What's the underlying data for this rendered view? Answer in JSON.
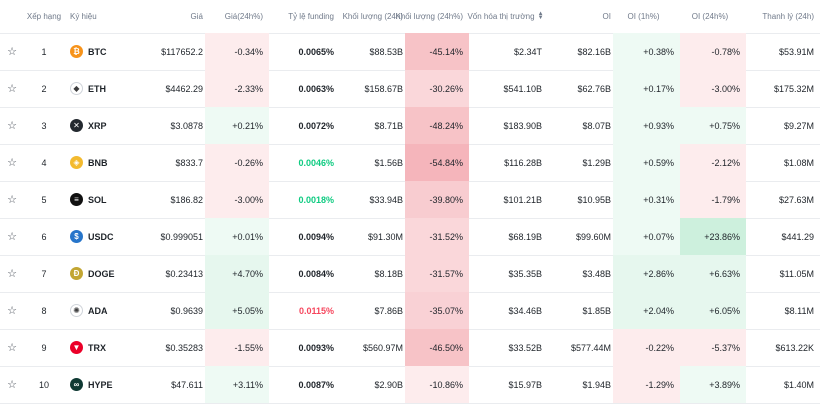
{
  "header": {
    "rank": "Xếp hạng",
    "symbol": "Ký hiệu",
    "price": "Giá",
    "price_change": "Giá(24h%)",
    "funding": "Tỷ lệ funding",
    "volume": "Khối lượng (24h)",
    "volume_change": "Khối lượng (24h%)",
    "market_cap_line1": "Vốn hóa thị",
    "market_cap_line2": "trường",
    "oi": "OI",
    "oi_1h": "OI (1h%)",
    "oi_24h": "OI (24h%)",
    "liquidation": "Thanh lý (24h)"
  },
  "colors": {
    "green_bg_light": "#eefaf4",
    "green_bg_strong": "#cdf0dd",
    "red_bg_light": "#fdeced",
    "red_bg_mid": "#fad7da",
    "red_bg_strong": "#f7c3c7",
    "green_text": "#0ecb81",
    "red_text": "#f6465d"
  },
  "rows": [
    {
      "rank": "1",
      "symbol": "BTC",
      "icon": "bitcoin-icon",
      "icon_color": "#f7931a",
      "glyph": "₿",
      "price": "$117652.2",
      "price_change": "-0.34%",
      "pc_bg": "#fdeced",
      "funding": "0.0065%",
      "funding_color": "",
      "volume": "$88.53B",
      "volume_change": "-45.14%",
      "vc_bg": "#f7c3c7",
      "market_cap": "$2.34T",
      "oi": "$82.16B",
      "oi_1h": "+0.38%",
      "oi1h_bg": "#eefaf4",
      "oi_24h": "-0.78%",
      "oi24_bg": "#fdeced",
      "liquidation": "$53.91M"
    },
    {
      "rank": "2",
      "symbol": "ETH",
      "icon": "ethereum-icon",
      "icon_color": "#ffffff",
      "glyph": "◆",
      "price": "$4462.29",
      "price_change": "-2.33%",
      "pc_bg": "#fdeced",
      "funding": "0.0063%",
      "funding_color": "",
      "volume": "$158.67B",
      "volume_change": "-30.26%",
      "vc_bg": "#fad7da",
      "market_cap": "$541.10B",
      "oi": "$62.76B",
      "oi_1h": "+0.17%",
      "oi1h_bg": "#eefaf4",
      "oi_24h": "-3.00%",
      "oi24_bg": "#fdeced",
      "liquidation": "$175.32M"
    },
    {
      "rank": "3",
      "symbol": "XRP",
      "icon": "xrp-icon",
      "icon_color": "#23292f",
      "glyph": "✕",
      "price": "$3.0878",
      "price_change": "+0.21%",
      "pc_bg": "#eefaf4",
      "funding": "0.0072%",
      "funding_color": "",
      "volume": "$8.71B",
      "volume_change": "-48.24%",
      "vc_bg": "#f7c3c7",
      "market_cap": "$183.90B",
      "oi": "$8.07B",
      "oi_1h": "+0.93%",
      "oi1h_bg": "#eefaf4",
      "oi_24h": "+0.75%",
      "oi24_bg": "#eefaf4",
      "liquidation": "$9.27M"
    },
    {
      "rank": "4",
      "symbol": "BNB",
      "icon": "bnb-icon",
      "icon_color": "#f3ba2f",
      "glyph": "◈",
      "price": "$833.7",
      "price_change": "-0.26%",
      "pc_bg": "#fdeced",
      "funding": "0.0046%",
      "funding_color": "green",
      "volume": "$1.56B",
      "volume_change": "-54.84%",
      "vc_bg": "#f5b5bb",
      "market_cap": "$116.28B",
      "oi": "$1.29B",
      "oi_1h": "+0.59%",
      "oi1h_bg": "#eefaf4",
      "oi_24h": "-2.12%",
      "oi24_bg": "#fdeced",
      "liquidation": "$1.08M"
    },
    {
      "rank": "5",
      "symbol": "SOL",
      "icon": "solana-icon",
      "icon_color": "#111111",
      "glyph": "≡",
      "price": "$186.82",
      "price_change": "-3.00%",
      "pc_bg": "#fdeced",
      "funding": "0.0018%",
      "funding_color": "green",
      "volume": "$33.94B",
      "volume_change": "-39.80%",
      "vc_bg": "#f8ccd0",
      "market_cap": "$101.21B",
      "oi": "$10.95B",
      "oi_1h": "+0.31%",
      "oi1h_bg": "#eefaf4",
      "oi_24h": "-1.79%",
      "oi24_bg": "#fdeced",
      "liquidation": "$27.63M"
    },
    {
      "rank": "6",
      "symbol": "USDC",
      "icon": "usdc-icon",
      "icon_color": "#2775ca",
      "glyph": "$",
      "price": "$0.999051",
      "price_change": "+0.01%",
      "pc_bg": "#eefaf4",
      "funding": "0.0094%",
      "funding_color": "",
      "volume": "$91.30M",
      "volume_change": "-31.52%",
      "vc_bg": "#fad7da",
      "market_cap": "$68.19B",
      "oi": "$99.60M",
      "oi_1h": "+0.07%",
      "oi1h_bg": "#eefaf4",
      "oi_24h": "+23.86%",
      "oi24_bg": "#cdf0dd",
      "liquidation": "$441.29"
    },
    {
      "rank": "7",
      "symbol": "DOGE",
      "icon": "dogecoin-icon",
      "icon_color": "#c2a633",
      "glyph": "Ð",
      "price": "$0.23413",
      "price_change": "+4.70%",
      "pc_bg": "#e6f7ee",
      "funding": "0.0084%",
      "funding_color": "",
      "volume": "$8.18B",
      "volume_change": "-31.57%",
      "vc_bg": "#fad7da",
      "market_cap": "$35.35B",
      "oi": "$3.48B",
      "oi_1h": "+2.86%",
      "oi1h_bg": "#e6f7ee",
      "oi_24h": "+6.63%",
      "oi24_bg": "#e6f7ee",
      "liquidation": "$11.05M"
    },
    {
      "rank": "8",
      "symbol": "ADA",
      "icon": "cardano-icon",
      "icon_color": "#ffffff",
      "glyph": "✺",
      "price": "$0.9639",
      "price_change": "+5.05%",
      "pc_bg": "#e6f7ee",
      "funding": "0.0115%",
      "funding_color": "red",
      "volume": "$7.86B",
      "volume_change": "-35.07%",
      "vc_bg": "#f9d1d5",
      "market_cap": "$34.46B",
      "oi": "$1.85B",
      "oi_1h": "+2.04%",
      "oi1h_bg": "#e6f7ee",
      "oi_24h": "+6.05%",
      "oi24_bg": "#e6f7ee",
      "liquidation": "$8.11M"
    },
    {
      "rank": "9",
      "symbol": "TRX",
      "icon": "tron-icon",
      "icon_color": "#eb0029",
      "glyph": "▼",
      "price": "$0.35283",
      "price_change": "-1.55%",
      "pc_bg": "#fdeced",
      "funding": "0.0093%",
      "funding_color": "",
      "volume": "$560.97M",
      "volume_change": "-46.50%",
      "vc_bg": "#f7c3c7",
      "market_cap": "$33.52B",
      "oi": "$577.44M",
      "oi_1h": "-0.22%",
      "oi1h_bg": "#fdeced",
      "oi_24h": "-5.37%",
      "oi24_bg": "#fdeced",
      "liquidation": "$613.22K"
    },
    {
      "rank": "10",
      "symbol": "HYPE",
      "icon": "hyperliquid-icon",
      "icon_color": "#0f3933",
      "glyph": "∞",
      "price": "$47.611",
      "price_change": "+3.11%",
      "pc_bg": "#eefaf4",
      "funding": "0.0087%",
      "funding_color": "",
      "volume": "$2.90B",
      "volume_change": "-10.86%",
      "vc_bg": "#fdeced",
      "market_cap": "$15.97B",
      "oi": "$1.94B",
      "oi_1h": "-1.29%",
      "oi1h_bg": "#fdeced",
      "oi_24h": "+3.89%",
      "oi24_bg": "#eefaf4",
      "liquidation": "$1.40M"
    }
  ]
}
